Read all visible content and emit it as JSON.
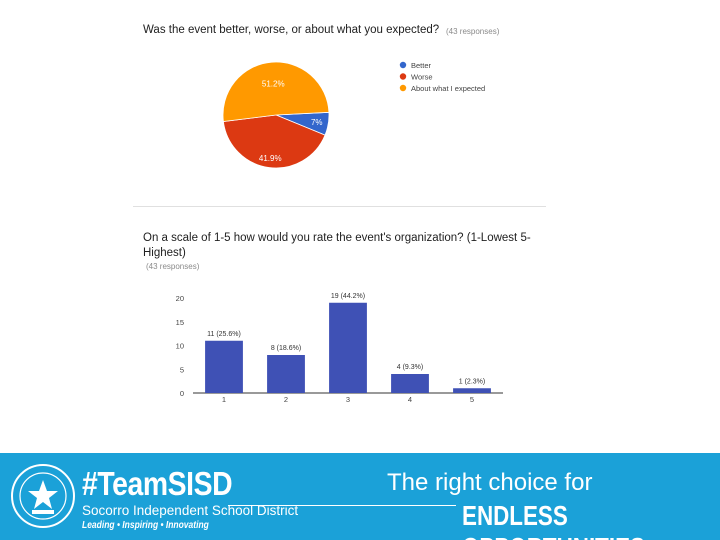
{
  "chart_data": [
    {
      "type": "pie",
      "title": "Was the event better, worse, or about what you expected?",
      "subtitle": "(43 responses)",
      "slices": [
        {
          "name": "Better",
          "percent": 7.0,
          "label": "7%",
          "color": "#3366cc"
        },
        {
          "name": "Worse",
          "percent": 41.9,
          "label": "41.9%",
          "color": "#dc3912"
        },
        {
          "name": "About what I expected",
          "percent": 51.2,
          "label": "51.2%",
          "color": "#ff9900"
        }
      ],
      "legend": "right"
    },
    {
      "type": "bar",
      "title": "On a scale of 1-5 how would you rate the event's organization? (1-Lowest 5-Highest)",
      "title_lines": [
        "On a scale of 1-5 how would you rate the event's organization? (1-Lowest 5-",
        "Highest)"
      ],
      "subtitle": "(43 responses)",
      "categories": [
        "1",
        "2",
        "3",
        "4",
        "5"
      ],
      "values": [
        11,
        8,
        19,
        4,
        1
      ],
      "data_labels": [
        "11 (25.6%)",
        "8 (18.6%)",
        "19 (44.2%)",
        "4 (9.3%)",
        "1 (2.3%)"
      ],
      "ylim": [
        0,
        20
      ],
      "yticks": [
        "0",
        "5",
        "10",
        "15",
        "20"
      ],
      "grid": false,
      "color": "#3f51b5"
    }
  ],
  "footer": {
    "hashtag": "#TeamSISD",
    "district": "Socorro Independent School District",
    "motto": "Leading • Inspiring • Innovating",
    "tagline_1": "The right choice for",
    "tagline_2": "ENDLESS OPPORTUNITIES.",
    "bg_color": "#1ba1d8"
  }
}
